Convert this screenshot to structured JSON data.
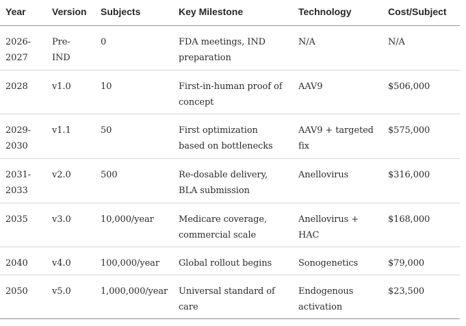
{
  "headers": {
    "year": "Year",
    "version": "Version",
    "subjects": "Subjects",
    "milestone": "Key Milestone",
    "technology": "Technology",
    "cost": "Cost/Subject"
  },
  "rows": [
    {
      "year": "2026-2027",
      "version": "Pre-IND",
      "subjects": "0",
      "milestone": "FDA meetings, IND preparation",
      "technology": "N/A",
      "cost": "N/A"
    },
    {
      "year": "2028",
      "version": "v1.0",
      "subjects": "10",
      "milestone": "First-in-human proof of concept",
      "technology": "AAV9",
      "cost": "$506,000"
    },
    {
      "year": "2029-2030",
      "version": "v1.1",
      "subjects": "50",
      "milestone": "First optimization based on bottlenecks",
      "technology": "AAV9 + targeted fix",
      "cost": "$575,000"
    },
    {
      "year": "2031-2033",
      "version": "v2.0",
      "subjects": "500",
      "milestone": "Re-dosable delivery, BLA submission",
      "technology": "Anellovirus",
      "cost": "$316,000"
    },
    {
      "year": "2035",
      "version": "v3.0",
      "subjects": "10,000/year",
      "milestone": "Medicare coverage, commercial scale",
      "technology": "Anellovirus + HAC",
      "cost": "$168,000"
    },
    {
      "year": "2040",
      "version": "v4.0",
      "subjects": "100,000/year",
      "milestone": "Global rollout begins",
      "technology": "Sonogenetics",
      "cost": "$79,000"
    },
    {
      "year": "2050",
      "version": "v5.0",
      "subjects": "1,000,000/year",
      "milestone": "Universal standard of care",
      "technology": "Endogenous activation",
      "cost": "$23,500"
    }
  ]
}
